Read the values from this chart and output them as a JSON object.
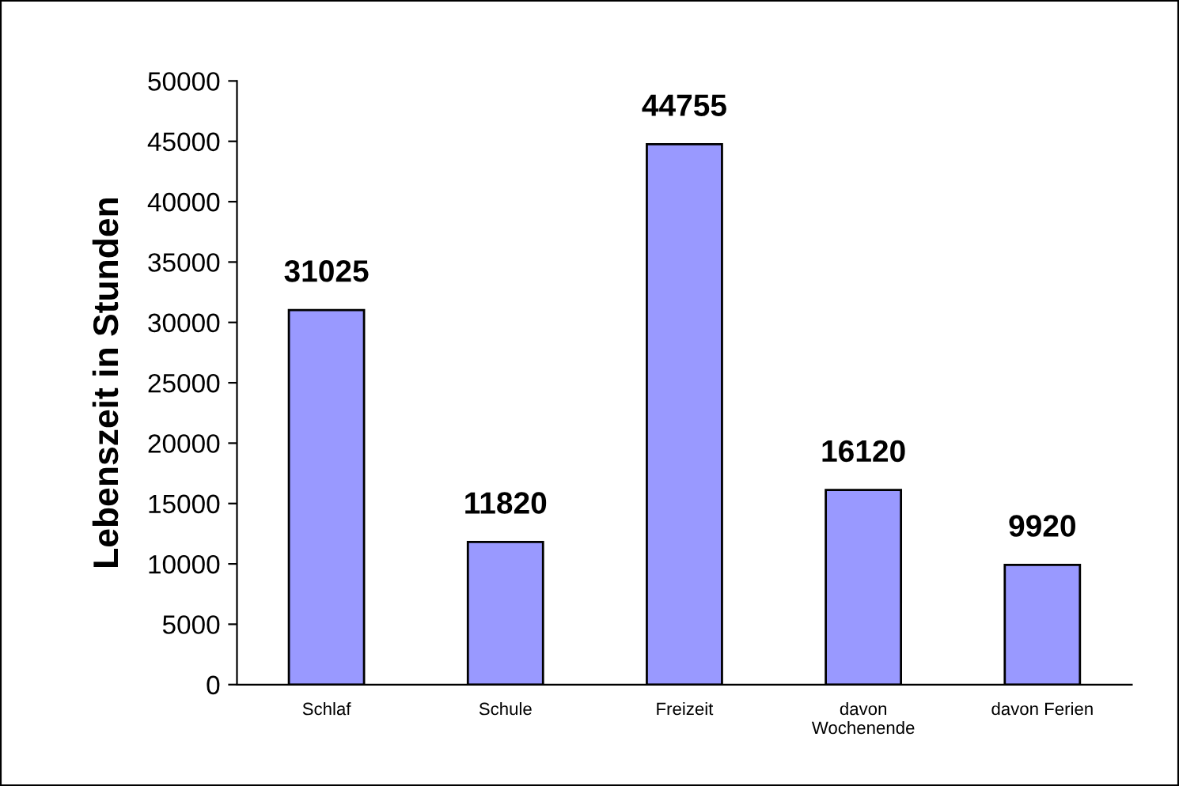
{
  "chart_data": {
    "type": "bar",
    "ylabel": "Lebenszeit in Stunden",
    "categories": [
      "Schlaf",
      "Schule",
      "Freizeit",
      "davon\nWochenende",
      "davon Ferien"
    ],
    "values": [
      31025,
      11820,
      44755,
      16120,
      9920
    ],
    "color": "#9999ff",
    "ylim": [
      0,
      50000
    ],
    "yticks": [
      0,
      5000,
      10000,
      15000,
      20000,
      25000,
      30000,
      35000,
      40000,
      45000,
      50000
    ],
    "data_labels": true,
    "grid": false,
    "legend": false
  }
}
